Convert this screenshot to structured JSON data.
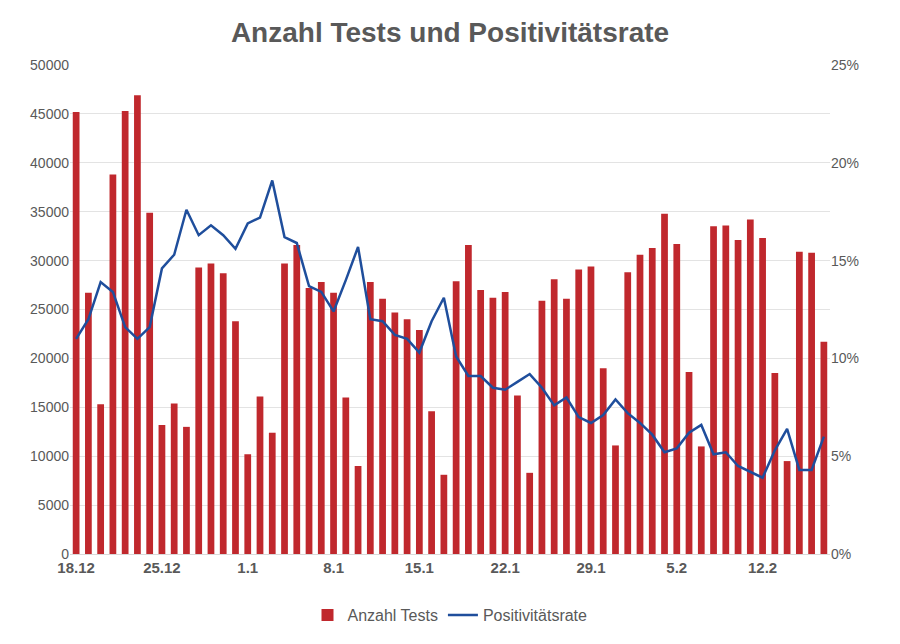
{
  "chart_data": {
    "type": "bar",
    "title": "Anzahl Tests und Positivitätsrate",
    "categories": [
      "18.12",
      null,
      null,
      null,
      null,
      null,
      null,
      "25.12",
      null,
      null,
      null,
      null,
      null,
      null,
      "1.1",
      null,
      null,
      null,
      null,
      null,
      null,
      "8.1",
      null,
      null,
      null,
      null,
      null,
      null,
      "15.1",
      null,
      null,
      null,
      null,
      null,
      null,
      "22.1",
      null,
      null,
      null,
      null,
      null,
      null,
      "29.1",
      null,
      null,
      null,
      null,
      null,
      null,
      "5.2",
      null,
      null,
      null,
      null,
      null,
      null,
      "12.2",
      null,
      null,
      null,
      null,
      null
    ],
    "series": [
      {
        "name": "Anzahl Tests",
        "type": "bar",
        "color": "#c0282d",
        "values": [
          45200,
          26700,
          15300,
          38800,
          45300,
          46900,
          34900,
          13200,
          15400,
          13000,
          29300,
          29700,
          28700,
          23800,
          10200,
          16100,
          12400,
          29700,
          31600,
          27200,
          27800,
          26700,
          16000,
          9000,
          27800,
          26100,
          24700,
          24000,
          22900,
          14600,
          8100,
          27900,
          31600,
          27000,
          26200,
          26800,
          16200,
          8300,
          25900,
          28100,
          26100,
          29100,
          29400,
          19000,
          11100,
          28800,
          30600,
          31300,
          34800,
          31700,
          18600,
          11000,
          33500,
          33600,
          32100,
          34200,
          32300,
          18500,
          9500,
          30900,
          30800,
          21700
        ]
      },
      {
        "name": "Positivitätsrate",
        "type": "line",
        "axis": "y2",
        "color": "#1f4e9c",
        "values": [
          11.0,
          12.0,
          13.9,
          13.4,
          11.6,
          11.0,
          11.6,
          14.6,
          15.3,
          17.6,
          16.3,
          16.8,
          16.3,
          15.6,
          16.9,
          17.2,
          19.1,
          16.2,
          15.9,
          13.7,
          13.4,
          12.4,
          14.0,
          15.7,
          12.0,
          11.9,
          11.2,
          11.0,
          10.3,
          11.9,
          13.1,
          10.1,
          9.1,
          9.1,
          8.5,
          8.4,
          8.8,
          9.2,
          8.5,
          7.6,
          8.0,
          7.0,
          6.7,
          7.1,
          7.9,
          7.2,
          6.7,
          6.1,
          5.2,
          5.4,
          6.2,
          6.6,
          5.1,
          5.2,
          4.5,
          4.2,
          3.9,
          5.3,
          6.4,
          4.3,
          4.3,
          6.0
        ]
      }
    ],
    "ylim": [
      0,
      50000
    ],
    "yticks": [
      0,
      5000,
      10000,
      15000,
      20000,
      25000,
      30000,
      35000,
      40000,
      45000,
      50000
    ],
    "y2lim": [
      0,
      25
    ],
    "y2ticks": [
      {
        "value": 0,
        "label": "0%"
      },
      {
        "value": 5,
        "label": "5%"
      },
      {
        "value": 10,
        "label": "10%"
      },
      {
        "value": 15,
        "label": "15%"
      },
      {
        "value": 20,
        "label": "20%"
      },
      {
        "value": 25,
        "label": "25%"
      }
    ],
    "grid": true,
    "legend": "bottom"
  }
}
